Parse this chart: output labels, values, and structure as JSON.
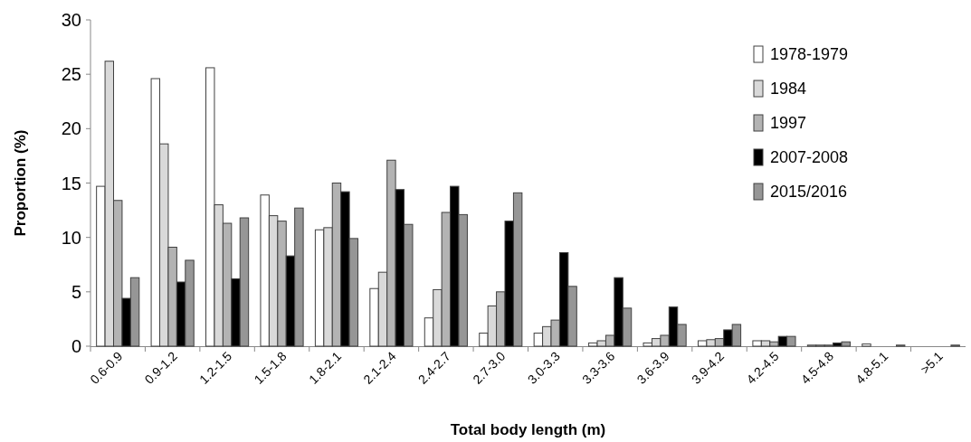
{
  "chart_data": {
    "type": "bar",
    "xlabel": "Total body length (m)",
    "ylabel": "Proportion (%)",
    "categories": [
      "0.6-0.9",
      "0.9-1.2",
      "1.2-1.5",
      "1.5-1.8",
      "1.8-2.1",
      "2.1-2.4",
      "2.4-2.7",
      "2.7-3.0",
      "3.0-3.3",
      "3.3-3.6",
      "3.6-3.9",
      "3.9-4.2",
      "4.2-4.5",
      "4.5-4.8",
      "4.8-5.1",
      ">5.1"
    ],
    "series": [
      {
        "name": "1978-1979",
        "color": "#ffffff",
        "values": [
          14.7,
          24.6,
          25.6,
          13.9,
          10.7,
          5.3,
          2.6,
          1.2,
          1.2,
          0.3,
          0.3,
          0.5,
          0.5,
          0.1,
          0.2,
          0
        ]
      },
      {
        "name": "1984",
        "color": "#d9d9d9",
        "values": [
          26.2,
          18.6,
          13.0,
          12.0,
          10.9,
          6.8,
          5.2,
          3.7,
          1.8,
          0.5,
          0.7,
          0.6,
          0.5,
          0.1,
          0,
          0
        ]
      },
      {
        "name": "1997",
        "color": "#b3b3b3",
        "values": [
          13.4,
          9.1,
          11.3,
          11.5,
          15.0,
          17.1,
          12.3,
          5.0,
          2.4,
          1.0,
          1.0,
          0.7,
          0.4,
          0.1,
          0,
          0
        ]
      },
      {
        "name": "2007-2008",
        "color": "#000000",
        "values": [
          4.4,
          5.9,
          6.2,
          8.3,
          14.2,
          14.4,
          14.7,
          11.5,
          8.6,
          6.3,
          3.6,
          1.5,
          0.9,
          0.3,
          0,
          0
        ]
      },
      {
        "name": "2015/2016",
        "color": "#969696",
        "values": [
          6.3,
          7.9,
          11.8,
          12.7,
          9.9,
          11.2,
          12.1,
          14.1,
          5.5,
          3.5,
          2.0,
          2.0,
          0.9,
          0.4,
          0.1,
          0.1
        ]
      }
    ],
    "ylim": [
      0,
      30
    ],
    "yticks": [
      0,
      5,
      10,
      15,
      20,
      25,
      30
    ],
    "legend": "top right",
    "grid": false
  }
}
